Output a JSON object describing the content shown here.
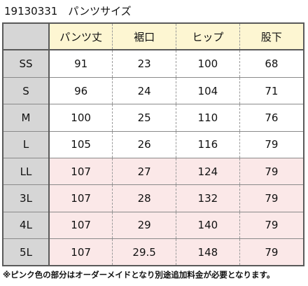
{
  "title": "19130331　パンツサイズ",
  "table": {
    "headers": [
      "パンツ丈",
      "裾口",
      "ヒップ",
      "股下"
    ],
    "rows": [
      {
        "size": "SS",
        "values": [
          "91",
          "23",
          "100",
          "68"
        ],
        "highlight": false
      },
      {
        "size": "S",
        "values": [
          "96",
          "24",
          "104",
          "71"
        ],
        "highlight": false
      },
      {
        "size": "M",
        "values": [
          "100",
          "25",
          "110",
          "76"
        ],
        "highlight": false
      },
      {
        "size": "L",
        "values": [
          "105",
          "26",
          "116",
          "79"
        ],
        "highlight": false
      },
      {
        "size": "LL",
        "values": [
          "107",
          "27",
          "124",
          "79"
        ],
        "highlight": true
      },
      {
        "size": "3L",
        "values": [
          "107",
          "28",
          "132",
          "79"
        ],
        "highlight": true
      },
      {
        "size": "4L",
        "values": [
          "107",
          "29",
          "140",
          "79"
        ],
        "highlight": true
      },
      {
        "size": "5L",
        "values": [
          "107",
          "29.5",
          "148",
          "79"
        ],
        "highlight": true
      }
    ]
  },
  "note": "※ピンク色の部分はオーダーメイドとなり別途追加料金が必要となります。",
  "colors": {
    "header_bg": "#fdf6d2",
    "label_bg": "#d6d6d6",
    "highlight_bg": "#fbe8e8"
  }
}
